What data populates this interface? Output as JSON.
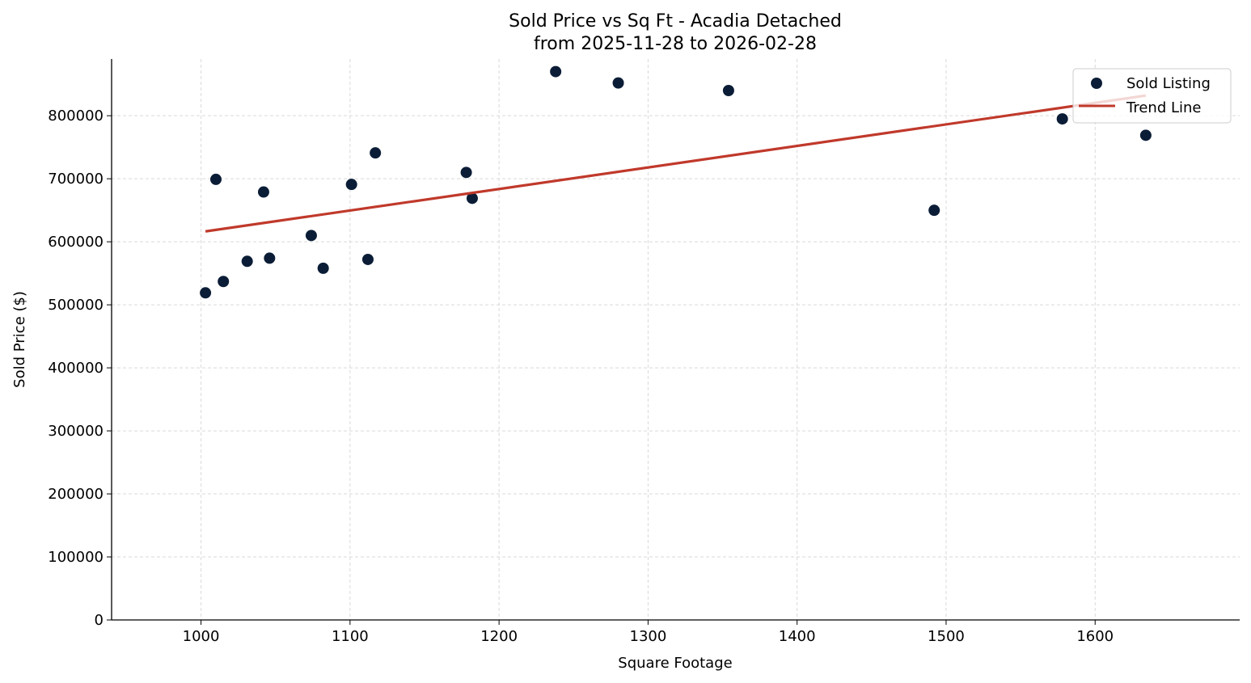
{
  "chart_data": {
    "type": "scatter",
    "title": "Sold Price vs Sq Ft - Acadia Detached",
    "subtitle": "from 2025-11-28 to 2026-02-28",
    "xlabel": "Square Footage",
    "ylabel": "Sold Price ($)",
    "xlim": [
      940,
      1697
    ],
    "ylim": [
      0,
      890000
    ],
    "xticks": [
      1000,
      1100,
      1200,
      1300,
      1400,
      1500,
      1600
    ],
    "yticks": [
      0,
      100000,
      200000,
      300000,
      400000,
      500000,
      600000,
      700000,
      800000
    ],
    "grid": true,
    "legend_position": "top-right",
    "series": [
      {
        "name": "Sold Listing",
        "kind": "scatter",
        "color": "#0b1d36",
        "points": [
          [
            1003,
            519000
          ],
          [
            1010,
            699000
          ],
          [
            1015,
            537000
          ],
          [
            1031,
            569000
          ],
          [
            1042,
            679000
          ],
          [
            1046,
            574000
          ],
          [
            1074,
            610000
          ],
          [
            1082,
            558000
          ],
          [
            1101,
            691000
          ],
          [
            1112,
            572000
          ],
          [
            1117,
            741000
          ],
          [
            1178,
            710000
          ],
          [
            1182,
            669000
          ],
          [
            1238,
            870000
          ],
          [
            1280,
            852000
          ],
          [
            1354,
            840000
          ],
          [
            1492,
            650000
          ],
          [
            1578,
            795000
          ],
          [
            1634,
            769000
          ]
        ]
      },
      {
        "name": "Trend Line",
        "kind": "line",
        "color": "#c0392b",
        "points": [
          [
            1003,
            616500
          ],
          [
            1634,
            832000
          ]
        ]
      }
    ]
  }
}
